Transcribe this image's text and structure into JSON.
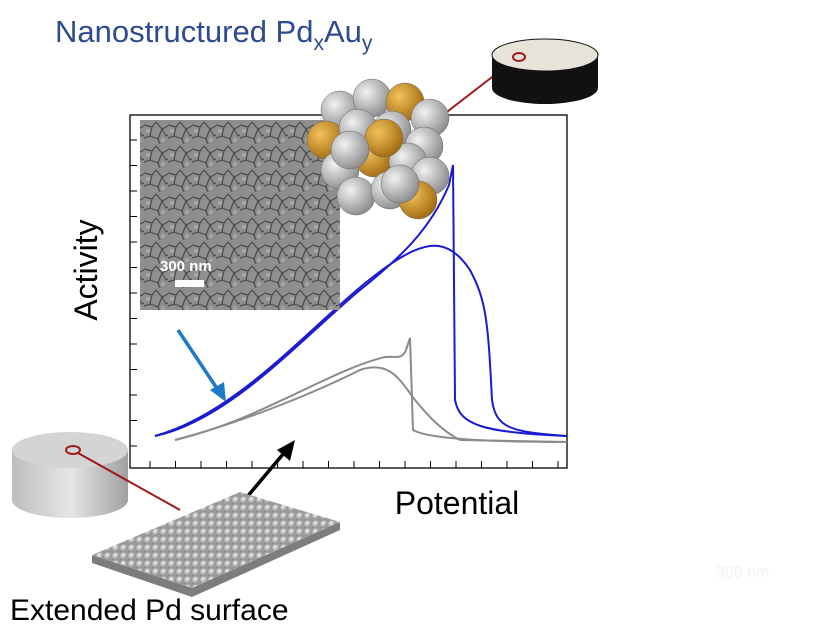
{
  "title": {
    "main": "Nanostructured Pd",
    "sub1": "x",
    "main2": "Au",
    "sub2": "y"
  },
  "axes": {
    "y_label": "Activity",
    "x_label": "Potential"
  },
  "inset": {
    "scale_bar": "300 nm"
  },
  "caption": "Extended Pd surface",
  "watermark": "300 nm"
}
